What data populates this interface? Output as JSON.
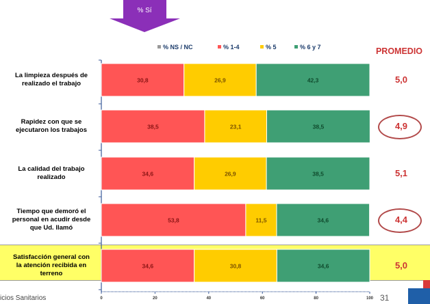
{
  "header": {
    "arrow_label": "% Sí"
  },
  "average_header": "PROMEDIO",
  "footer": {
    "left_text": "icios Sanitarios",
    "page_number": "31"
  },
  "colors": {
    "ns": "#999999",
    "low": "#ff5555",
    "mid": "#ffcc00",
    "high": "#3f9f74"
  },
  "chart_data": {
    "type": "bar",
    "orientation": "horizontal",
    "stacked": true,
    "categories": [
      "La limpieza después de\nrealizado el trabajo",
      "Rapidez con que se\nejecutaron los trabajos",
      "La calidad del trabajo\nrealizado",
      "Tiempo que demoró el\npersonal en acudir desde\nque Ud. llamó",
      "Satisfacción general con\nla atención recibida en\nterreno"
    ],
    "series": [
      {
        "name": "% NS / NC",
        "values": [
          0,
          0,
          0,
          0,
          0
        ]
      },
      {
        "name": "% 1-4",
        "values": [
          30.8,
          38.5,
          34.6,
          53.8,
          34.6
        ]
      },
      {
        "name": "% 5",
        "values": [
          26.9,
          23.1,
          26.9,
          11.5,
          30.8
        ]
      },
      {
        "name": "% 6 y 7",
        "values": [
          42.3,
          38.5,
          38.5,
          34.6,
          34.6
        ]
      }
    ],
    "averages": [
      "5,0",
      "4,9",
      "5,1",
      "4,4",
      "5,0"
    ],
    "circled": [
      false,
      true,
      false,
      true,
      false
    ],
    "highlighted_category": 4,
    "xlim": [
      0,
      100
    ],
    "xticks": [
      0,
      20,
      40,
      60,
      80,
      100
    ],
    "legend_position": "top"
  }
}
